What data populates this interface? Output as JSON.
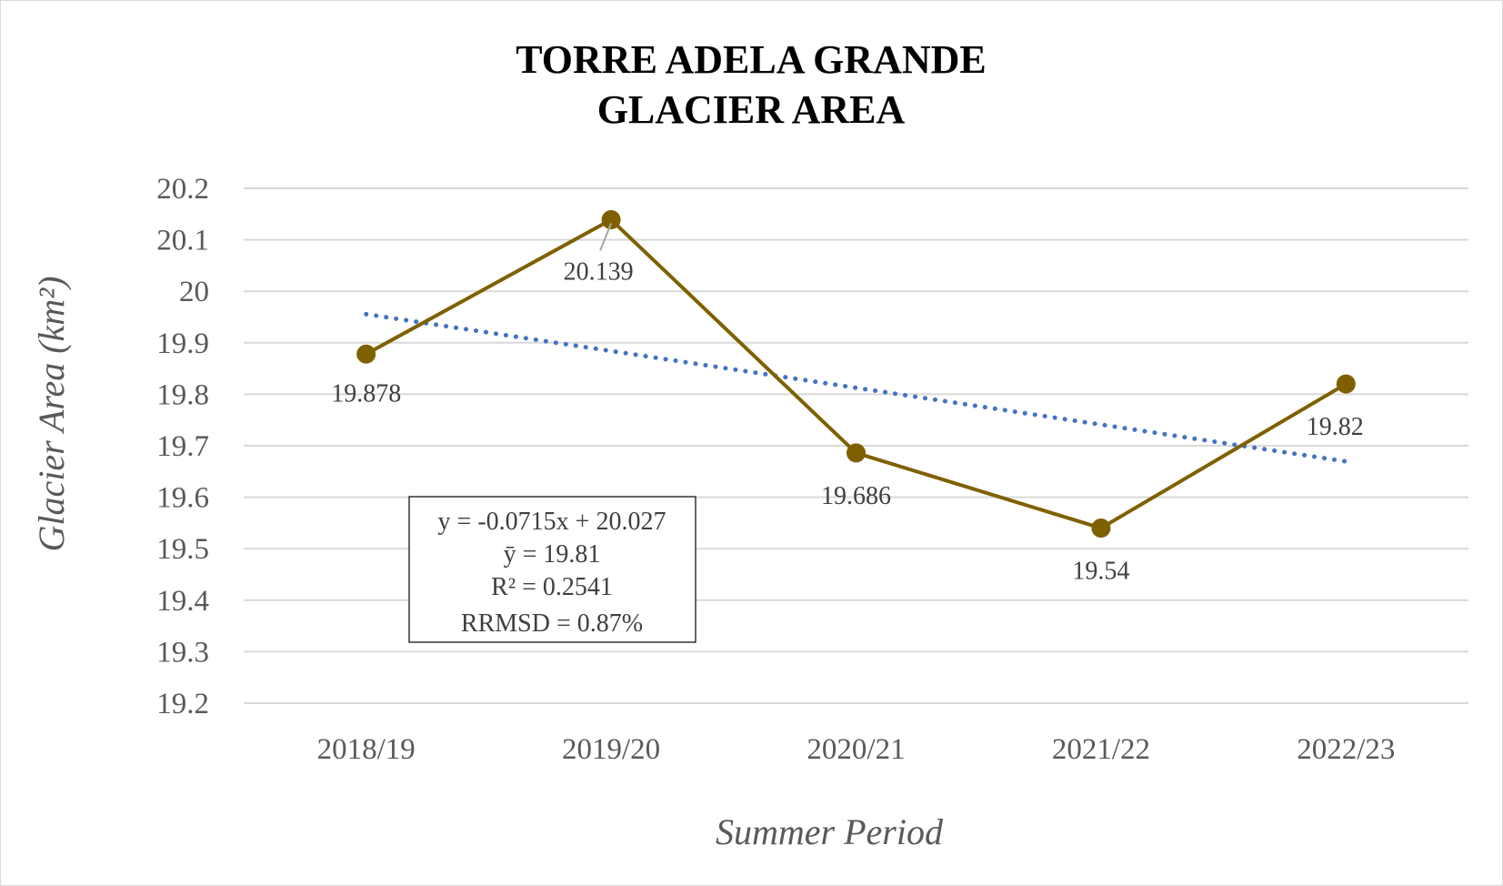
{
  "chart_data": {
    "type": "line",
    "title": [
      "TORRE ADELA GRANDE",
      "GLACIER AREA"
    ],
    "xlabel": "Summer Period",
    "ylabel": "Glacier Area (km²)",
    "categories": [
      "2018/19",
      "2019/20",
      "2020/21",
      "2021/22",
      "2022/23"
    ],
    "series": [
      {
        "values": [
          19.878,
          20.139,
          19.686,
          19.54,
          19.82
        ],
        "color": "#7f6000"
      }
    ],
    "data_labels": [
      "19.878",
      "20.139",
      "19.686",
      "19.54",
      "19.82"
    ],
    "trendline": {
      "type": "linear",
      "slope": -0.0715,
      "intercept": 20.027,
      "color": "#4472c4",
      "style": "dotted"
    },
    "ylim": [
      19.2,
      20.2
    ],
    "yticks": [
      "20.2",
      "20.1",
      "20",
      "19.9",
      "19.8",
      "19.7",
      "19.6",
      "19.5",
      "19.4",
      "19.3",
      "19.2"
    ],
    "grid": true,
    "legend": "none",
    "stats_box": [
      "y = -0.0715x + 20.027",
      "ȳ = 19.81",
      "R² = 0.2541",
      "RRMSD = 0.87%"
    ]
  }
}
